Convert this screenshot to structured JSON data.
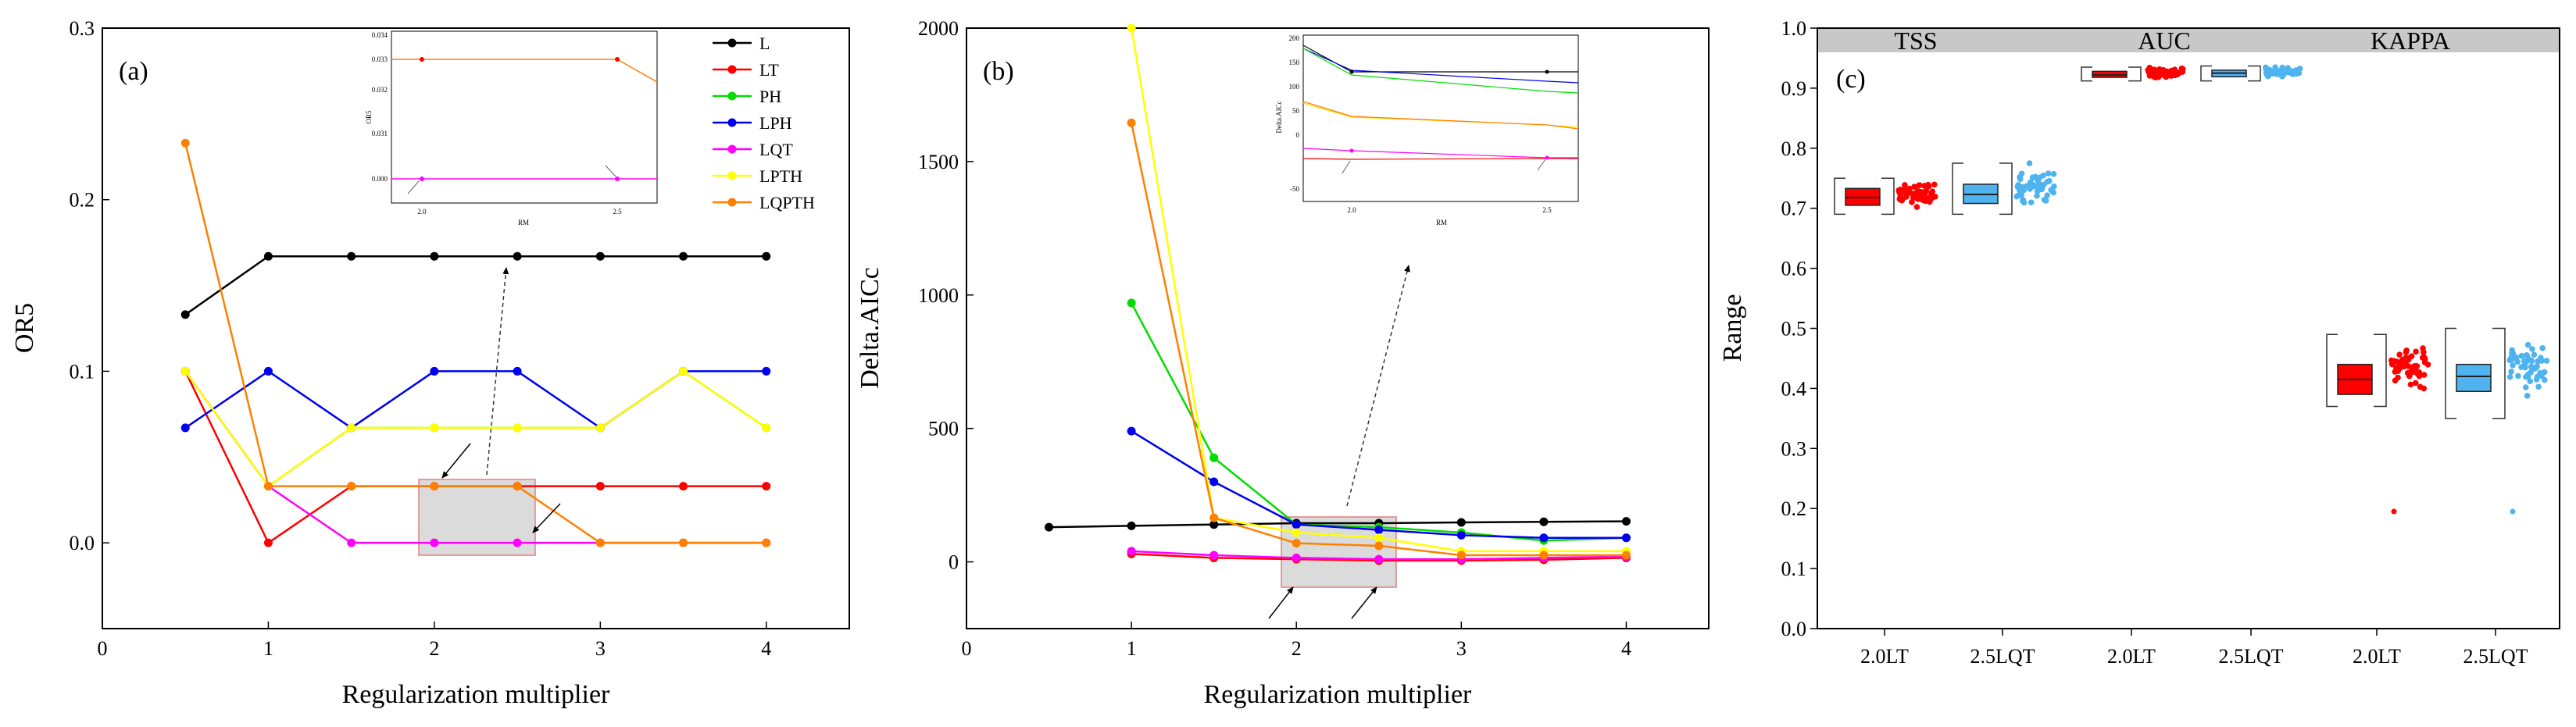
{
  "chart_data": [
    {
      "id": "a",
      "type": "line",
      "panel_label": "(a)",
      "xlabel": "Regularization multiplier",
      "ylabel": "OR5",
      "xlim": [
        0,
        4.5
      ],
      "ylim": [
        -0.05,
        0.3
      ],
      "xticks": [
        0,
        1,
        2,
        3,
        4
      ],
      "xtick_labels": [
        "0",
        "1",
        "2",
        "3",
        "4"
      ],
      "yticks": [
        0.0,
        0.1,
        0.2,
        0.3
      ],
      "ytick_labels": [
        "0.0",
        "0.1",
        "0.2",
        "0.3"
      ],
      "x": [
        0.5,
        1,
        1.5,
        2,
        2.5,
        3,
        3.5,
        4
      ],
      "series": [
        {
          "name": "L",
          "color": "#000000",
          "values": [
            0.133,
            0.167,
            0.167,
            0.167,
            0.167,
            0.167,
            0.167,
            0.167
          ]
        },
        {
          "name": "LT",
          "color": "#ff0000",
          "values": [
            0.1,
            0.0,
            0.033,
            0.033,
            0.033,
            0.033,
            0.033,
            0.033
          ]
        },
        {
          "name": "PH",
          "color": "#00dd00",
          "values": [
            0.1,
            0.033,
            0.067,
            0.067,
            0.067,
            0.067,
            0.1,
            0.067
          ]
        },
        {
          "name": "LPH",
          "color": "#0000ee",
          "values": [
            0.067,
            0.1,
            0.067,
            0.1,
            0.1,
            0.067,
            0.1,
            0.1
          ]
        },
        {
          "name": "LQT",
          "color": "#ff00ff",
          "values": [
            0.1,
            0.033,
            0.0,
            0.0,
            0.0,
            0.0,
            0.0,
            0.0
          ]
        },
        {
          "name": "LPTH",
          "color": "#ffff00",
          "values": [
            0.1,
            0.033,
            0.067,
            0.067,
            0.067,
            0.067,
            0.1,
            0.067
          ]
        },
        {
          "name": "LQPTH",
          "color": "#ff8000",
          "values": [
            0.233,
            0.033,
            0.033,
            0.033,
            0.033,
            0.0,
            0.0,
            0.0
          ]
        }
      ],
      "inset": {
        "xlabel": "RM",
        "ylabel": "OR5",
        "xtick_labels": [
          "2.0",
          "2.5"
        ],
        "ytick_labels": [
          "0.034",
          "0.033",
          "0.032",
          "0.031",
          "0.000"
        ]
      }
    },
    {
      "id": "b",
      "type": "line",
      "panel_label": "(b)",
      "xlabel": "Regularization multiplier",
      "ylabel": "Delta.AICc",
      "xlim": [
        0,
        4.5
      ],
      "ylim": [
        -250,
        2000
      ],
      "xticks": [
        0,
        1,
        2,
        3,
        4
      ],
      "xtick_labels": [
        "0",
        "1",
        "2",
        "3",
        "4"
      ],
      "yticks": [
        0,
        500,
        1000,
        1500,
        2000
      ],
      "ytick_labels": [
        "0",
        "500",
        "1000",
        "1500",
        "2000"
      ],
      "x": [
        0.5,
        1,
        1.5,
        2,
        2.5,
        3,
        3.5,
        4
      ],
      "series": [
        {
          "name": "L",
          "color": "#000000",
          "values": [
            130,
            135,
            140,
            145,
            145,
            148,
            150,
            152
          ]
        },
        {
          "name": "LT",
          "color": "#ff0000",
          "values": [
            null,
            30,
            15,
            10,
            5,
            5,
            8,
            15
          ]
        },
        {
          "name": "PH",
          "color": "#00dd00",
          "values": [
            null,
            970,
            390,
            140,
            130,
            110,
            80,
            90
          ]
        },
        {
          "name": "LPH",
          "color": "#0000ee",
          "values": [
            null,
            490,
            300,
            140,
            120,
            100,
            90,
            90
          ]
        },
        {
          "name": "LQT",
          "color": "#ff00ff",
          "values": [
            null,
            40,
            25,
            15,
            10,
            10,
            15,
            20
          ]
        },
        {
          "name": "LPTH",
          "color": "#ffff00",
          "values": [
            null,
            2000,
            165,
            110,
            90,
            40,
            40,
            40
          ]
        },
        {
          "name": "LQPTH",
          "color": "#ff8000",
          "values": [
            null,
            1645,
            165,
            70,
            60,
            25,
            25,
            25
          ]
        }
      ],
      "inset": {
        "xlabel": "RM",
        "ylabel": "Delta.AICc",
        "xtick_labels": [
          "2.0",
          "2.5"
        ],
        "ytick_labels": [
          "200",
          "150",
          "100",
          "50",
          "0",
          "-50"
        ]
      }
    },
    {
      "id": "c",
      "type": "box",
      "panel_label": "(c)",
      "ylabel": "Range",
      "ylim": [
        0,
        1
      ],
      "yticks": [
        0.0,
        0.1,
        0.2,
        0.3,
        0.4,
        0.5,
        0.6,
        0.7,
        0.8,
        0.9,
        1.0
      ],
      "ytick_labels": [
        "0.0",
        "0.1",
        "0.2",
        "0.3",
        "0.4",
        "0.5",
        "0.6",
        "0.7",
        "0.8",
        "0.9",
        "1.0"
      ],
      "facets": [
        "TSS",
        "AUC",
        "KAPPA"
      ],
      "categories": [
        "2.0LT",
        "2.5LQT",
        "2.0LT",
        "2.5LQT",
        "2.0LT",
        "2.5LQT"
      ],
      "colors": {
        "2.0LT": "#ff0000",
        "2.5LQT": "#4fb3f0"
      },
      "boxes": [
        {
          "facet": "TSS",
          "category": "2.0LT",
          "min": 0.69,
          "q1": 0.705,
          "median": 0.718,
          "q3": 0.733,
          "max": 0.75
        },
        {
          "facet": "TSS",
          "category": "2.5LQT",
          "min": 0.69,
          "q1": 0.708,
          "median": 0.723,
          "q3": 0.74,
          "max": 0.775
        },
        {
          "facet": "AUC",
          "category": "2.0LT",
          "min": 0.912,
          "q1": 0.918,
          "median": 0.922,
          "q3": 0.928,
          "max": 0.935
        },
        {
          "facet": "AUC",
          "category": "2.5LQT",
          "min": 0.912,
          "q1": 0.919,
          "median": 0.925,
          "q3": 0.93,
          "max": 0.937
        },
        {
          "facet": "KAPPA",
          "category": "2.0LT",
          "min": 0.37,
          "q1": 0.39,
          "median": 0.415,
          "q3": 0.44,
          "max": 0.49,
          "outliers": [
            0.195
          ]
        },
        {
          "facet": "KAPPA",
          "category": "2.5LQT",
          "min": 0.35,
          "q1": 0.395,
          "median": 0.42,
          "q3": 0.44,
          "max": 0.5,
          "outliers": [
            0.195
          ]
        }
      ]
    }
  ]
}
